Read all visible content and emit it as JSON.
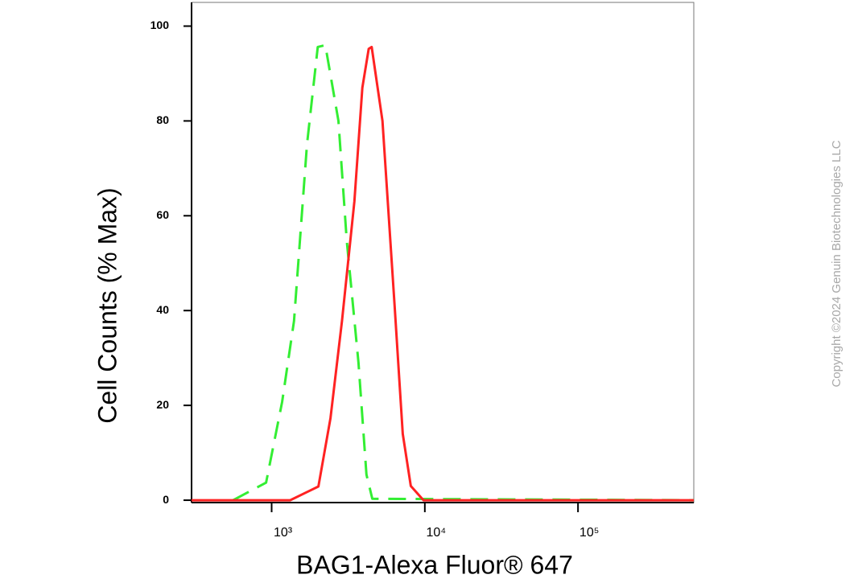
{
  "chart_data": {
    "type": "line",
    "xlabel": "BAG1-Alexa Fluor® 647",
    "ylabel": "Cell Counts (% Max)",
    "copyright": "Copyright ©2024 Genuin Biotechnologies LLC",
    "xscale": "log",
    "xlim": [
      300,
      570000
    ],
    "ylim": [
      -0.5,
      105
    ],
    "xticks": [
      {
        "value": 1000,
        "label": "10³"
      },
      {
        "value": 10000,
        "label": "10⁴"
      },
      {
        "value": 100000,
        "label": "10⁵"
      }
    ],
    "yticks": [
      0,
      20,
      40,
      60,
      80,
      100
    ],
    "grid": false,
    "series": [
      {
        "color": "#33ee33",
        "dash": true,
        "x": [
          560,
          920,
          1170,
          1400,
          1700,
          2000,
          2240,
          2730,
          3090,
          3690,
          4160,
          4540,
          570000
        ],
        "values": [
          0,
          3.7,
          20.7,
          37.8,
          75,
          95.6,
          96,
          80,
          54.8,
          29,
          5.4,
          0.3,
          0
        ]
      },
      {
        "color": "#ff2222",
        "dash": false,
        "x": [
          300,
          1320,
          2020,
          2420,
          2880,
          3470,
          3910,
          4300,
          4500,
          5290,
          6350,
          7180,
          8100,
          9800,
          570000
        ],
        "values": [
          0,
          0,
          2.9,
          17.3,
          37.8,
          63,
          87,
          95.2,
          95.6,
          80,
          41,
          14,
          3,
          0,
          0
        ]
      }
    ]
  }
}
